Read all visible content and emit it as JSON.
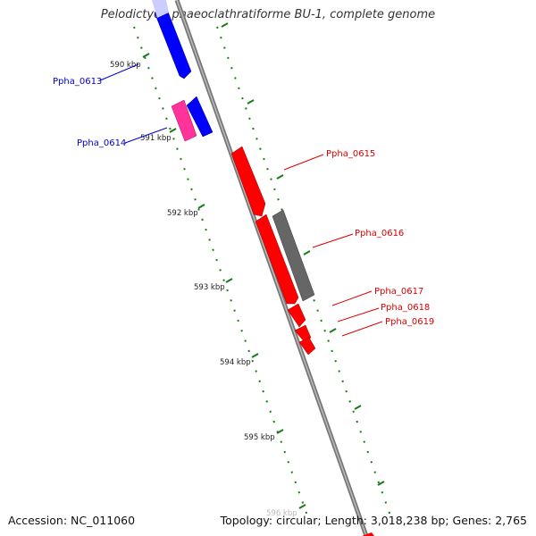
{
  "title": "Pelodictyon phaeoclathratiforme BU-1, complete genome",
  "accession_text": "Accession: NC_011060",
  "summary_text": "Topology: circular; Length: 3,018,238 bp; Genes: 2,765",
  "colors": {
    "backbone": "#888888",
    "tick": "#1a7a1a",
    "forward_strand": "#ff0000",
    "reverse_strand": "#0000ff",
    "pink_gene": "#ff3399",
    "gray_gene": "#666666",
    "label_blue": "#0000cc",
    "label_red": "#dd0000"
  },
  "ticks": [
    "590 kbp",
    "591 kbp",
    "592 kbp",
    "593 kbp",
    "594 kbp",
    "595 kbp",
    "596 kbp"
  ],
  "gene_labels": [
    {
      "id": "Ppha_0613",
      "side": "left"
    },
    {
      "id": "Ppha_0614",
      "side": "left"
    },
    {
      "id": "Ppha_0615",
      "side": "right"
    },
    {
      "id": "Ppha_0616",
      "side": "right"
    },
    {
      "id": "Ppha_0617",
      "side": "right"
    },
    {
      "id": "Ppha_0618",
      "side": "right"
    },
    {
      "id": "Ppha_0619",
      "side": "right"
    }
  ]
}
